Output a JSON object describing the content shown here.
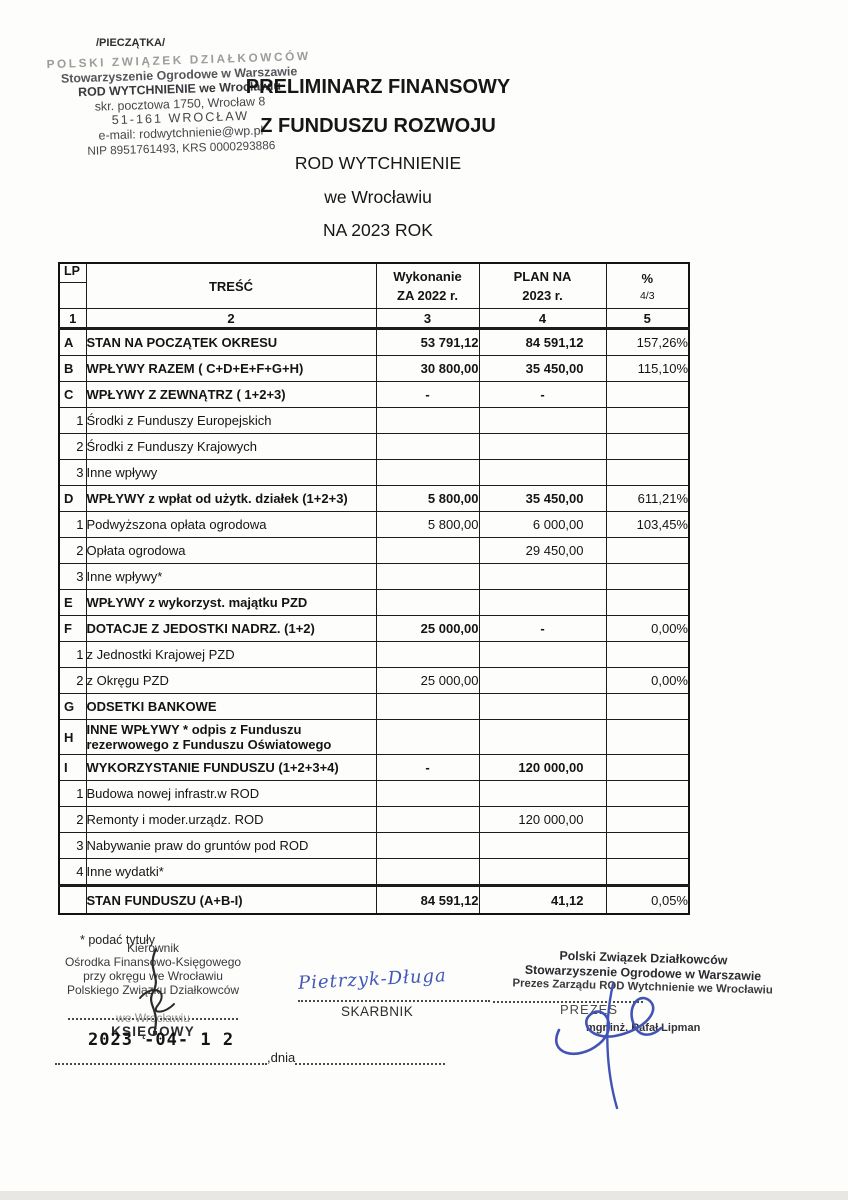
{
  "stamp_area_label": "/PIECZĄTKA/",
  "org_stamp": {
    "lines": [
      "POLSKI ZWIĄZEK DZIAŁKOWCÓW",
      "Stowarzyszenie Ogrodowe w Warszawie",
      "ROD WYTCHNIENIE we Wrocławiu",
      "skr. pocztowa 1750, Wrocław 8",
      "51-161 WROCŁAW",
      "e-mail: rodwytchnienie@wp.pl",
      "NIP 8951761493, KRS 0000293886"
    ]
  },
  "title": {
    "lines": [
      "PRELIMINARZ FINANSOWY",
      "Z FUNDUSZU ROZWOJU",
      "ROD WYTCHNIENIE",
      "we Wrocławiu",
      "NA 2023 ROK"
    ]
  },
  "table": {
    "headers": {
      "lp": "LP",
      "tresc": "TREŚĆ",
      "col3_line1": "Wykonanie",
      "col3_line2": "ZA 2022 r.",
      "col4_line1": "PLAN NA",
      "col4_line2": "2023 r.",
      "col5_line1": "%",
      "col5_line2": "4/3"
    },
    "colnums": [
      "1",
      "2",
      "3",
      "4",
      "5"
    ],
    "rows": [
      {
        "lp": "A",
        "tresc": "STAN NA POCZĄTEK OKRESU",
        "c3": "53 791,12",
        "c4": "84 591,12",
        "c5": "157,26%",
        "bold": true
      },
      {
        "lp": "B",
        "tresc": "WPŁYWY RAZEM ( C+D+E+F+G+H)",
        "c3": "30 800,00",
        "c4": "35 450,00",
        "c5": "115,10%",
        "bold": true
      },
      {
        "lp": "C",
        "tresc": "WPŁYWY Z ZEWNĄTRZ ( 1+2+3)",
        "c3": "-",
        "c4": "-",
        "c5": "",
        "bold": true
      },
      {
        "lp": "1",
        "tresc": "Środki z Funduszy Europejskich",
        "c3": "",
        "c4": "",
        "c5": ""
      },
      {
        "lp": "2",
        "tresc": "Środki z Funduszy Krajowych",
        "c3": "",
        "c4": "",
        "c5": ""
      },
      {
        "lp": "3",
        "tresc": "Inne wpływy",
        "c3": "",
        "c4": "",
        "c5": ""
      },
      {
        "lp": "D",
        "tresc": "WPŁYWY z wpłat od użytk. działek (1+2+3)",
        "c3": "5 800,00",
        "c4": "35 450,00",
        "c5": "611,21%",
        "bold": true
      },
      {
        "lp": "1",
        "tresc": "Podwyższona opłata ogrodowa",
        "c3": "5 800,00",
        "c4": "6 000,00",
        "c5": "103,45%"
      },
      {
        "lp": "2",
        "tresc": "Opłata ogrodowa",
        "c3": "",
        "c4": "29 450,00",
        "c5": ""
      },
      {
        "lp": "3",
        "tresc": "Inne wpływy*",
        "c3": "",
        "c4": "",
        "c5": ""
      },
      {
        "lp": "E",
        "tresc": "WPŁYWY z wykorzyst. majątku PZD",
        "c3": "",
        "c4": "",
        "c5": "",
        "bold": true
      },
      {
        "lp": "F",
        "tresc": "DOTACJE Z JEDOSTKI NADRZ. (1+2)",
        "c3": "25 000,00",
        "c4": "-",
        "c5": "0,00%",
        "bold": true
      },
      {
        "lp": "1",
        "tresc": "z Jednostki Krajowej PZD",
        "c3": "",
        "c4": "",
        "c5": ""
      },
      {
        "lp": "2",
        "tresc": "z Okręgu PZD",
        "c3": "25 000,00",
        "c4": "",
        "c5": "0,00%"
      },
      {
        "lp": "G",
        "tresc": "ODSETKI BANKOWE",
        "c3": "",
        "c4": "",
        "c5": "",
        "bold": true
      },
      {
        "lp": "H",
        "tresc": "INNE WPŁYWY * odpis z Funduszu\nrezerwowego  z Funduszu Oświatowego",
        "c3": "",
        "c4": "",
        "c5": "",
        "bold": true,
        "tall": true
      },
      {
        "lp": "I",
        "tresc": "WYKORZYSTANIE FUNDUSZU (1+2+3+4)",
        "c3": "-",
        "c4": "120 000,00",
        "c5": "",
        "bold": true
      },
      {
        "lp": "1",
        "tresc": "Budowa nowej infrastr.w ROD",
        "c3": "",
        "c4": "",
        "c5": ""
      },
      {
        "lp": "2",
        "tresc": "Remonty i moder.urządz. ROD",
        "c3": "",
        "c4": "120 000,00",
        "c5": ""
      },
      {
        "lp": "3",
        "tresc": "Nabywanie praw do gruntów pod ROD",
        "c3": "",
        "c4": "",
        "c5": ""
      },
      {
        "lp": "4",
        "tresc": "Inne wydatki*",
        "c3": "",
        "c4": "",
        "c5": ""
      },
      {
        "lp": "",
        "tresc": "STAN FUNDUSZU (A+B-I)",
        "c3": "84 591,12",
        "c4": "41,12",
        "c5": "0,05%",
        "bold": true,
        "final": true
      }
    ],
    "footnote": "* podać tytuły"
  },
  "signatures": {
    "left": {
      "stamp_lines": [
        "Kierownik",
        "Ośrodka Finansowo-Księgowego",
        "przy okręgu we Wrocławiu",
        "Polskiego Związku Działkowców",
        "we Wrocławiu"
      ],
      "role": "KSIĘGOWY"
    },
    "middle": {
      "handwriting": "Pietrzyk-Długa",
      "role": "SKARBNIK"
    },
    "right": {
      "stamp_lines": [
        "Polski Związek Działkowców",
        "Stowarzyszenie Ogrodowe w Warszawie",
        "Prezes Zarządu ROD Wytchnienie we Wrocławiu"
      ],
      "role": "PREZES",
      "name": "mgr inż. Rafał Lipman"
    },
    "date_stamp": "2023 -04- 1 2",
    "dnia_label": ",dnia"
  }
}
